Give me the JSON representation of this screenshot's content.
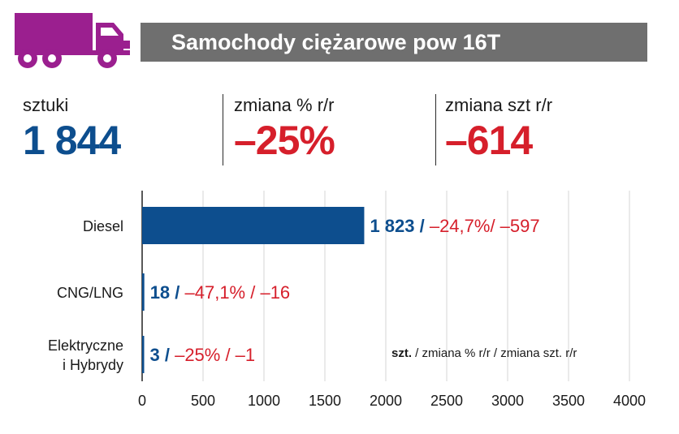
{
  "header": {
    "title": "Samochody ciężarowe pow 16T",
    "icon": "truck-icon",
    "icon_color": "#9b1f8f",
    "bar_color": "#6f6f6f"
  },
  "kpis": [
    {
      "label": "sztuki",
      "value": "1 844",
      "color": "#0d4e8e"
    },
    {
      "label": "zmiana % r/r",
      "value": "–25%",
      "color": "#d61f2b"
    },
    {
      "label": "zmiana szt r/r",
      "value": "–614",
      "color": "#d61f2b"
    }
  ],
  "chart_data": {
    "type": "bar",
    "orientation": "horizontal",
    "categories": [
      "Diesel",
      "CNG/LNG",
      "Elektryczne\ni Hybrydy"
    ],
    "values": [
      1823,
      18,
      3
    ],
    "labels": [
      {
        "units": "1 823 /",
        "change": " –24,7%/ –597"
      },
      {
        "units": "18 /",
        "change": " –47,1% / –16"
      },
      {
        "units": "3 /",
        "change": " –25% / –1"
      }
    ],
    "xlim": [
      0,
      4000
    ],
    "xticks": [
      0,
      500,
      1000,
      1500,
      2000,
      2500,
      3000,
      3500,
      4000
    ],
    "grid": true,
    "bar_color": "#0d4e8e",
    "legend": {
      "bold": "szt.",
      "rest": " / zmiana % r/r / zmiana szt. r/r"
    }
  }
}
